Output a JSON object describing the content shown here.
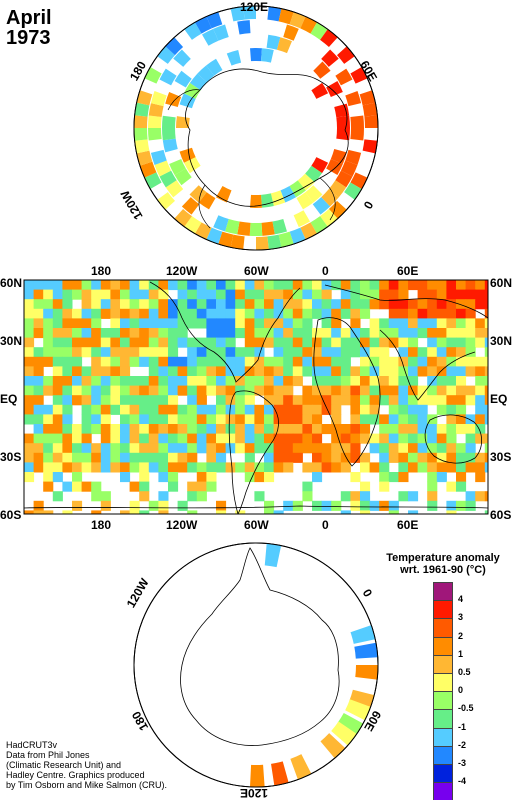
{
  "title": {
    "month": "April",
    "year": "1973"
  },
  "north_polar": {
    "labels": {
      "top": "120E",
      "left": "180",
      "right": "60E",
      "lower_left": "120W",
      "lower_right": "0"
    }
  },
  "world_map": {
    "top_labels": [
      "180",
      "120W",
      "60W",
      "0",
      "60E"
    ],
    "bottom_labels": [
      "180",
      "120W",
      "60W",
      "0",
      "60E"
    ],
    "left_labels": [
      "60N",
      "30N",
      "EQ",
      "30S",
      "60S"
    ],
    "right_labels": [
      "60N",
      "30N",
      "EQ",
      "30S",
      "60S"
    ]
  },
  "south_polar": {
    "labels": {
      "upper_left": "120W",
      "upper_right": "0",
      "lower_left": "180",
      "lower_right": "60E",
      "bottom": "120E"
    }
  },
  "legend": {
    "title_line1": "Temperature anomaly",
    "title_line2": "wrt. 1961-90  (°C)",
    "bins": [
      {
        "color": "#a0177a",
        "label": "4"
      },
      {
        "color": "#ff1a00",
        "label": "3"
      },
      {
        "color": "#ff5a00",
        "label": "2"
      },
      {
        "color": "#ff8c00",
        "label": "1"
      },
      {
        "color": "#ffb733",
        "label": "0.5"
      },
      {
        "color": "#ffff66",
        "label": "0"
      },
      {
        "color": "#99ff66",
        "label": "-0.5"
      },
      {
        "color": "#66ee88",
        "label": "-1"
      },
      {
        "color": "#55ccff",
        "label": "-2"
      },
      {
        "color": "#2288ff",
        "label": "-3"
      },
      {
        "color": "#0022dd",
        "label": "-4"
      },
      {
        "color": "#7700ee",
        "label": ""
      }
    ]
  },
  "credits": [
    "HadCRUT3v",
    "Data from Phil Jones",
    "(Climatic Research Unit) and",
    "Hadley Centre.  Graphics produced",
    "by Tim Osborn and Mike Salmon (CRU)."
  ]
}
